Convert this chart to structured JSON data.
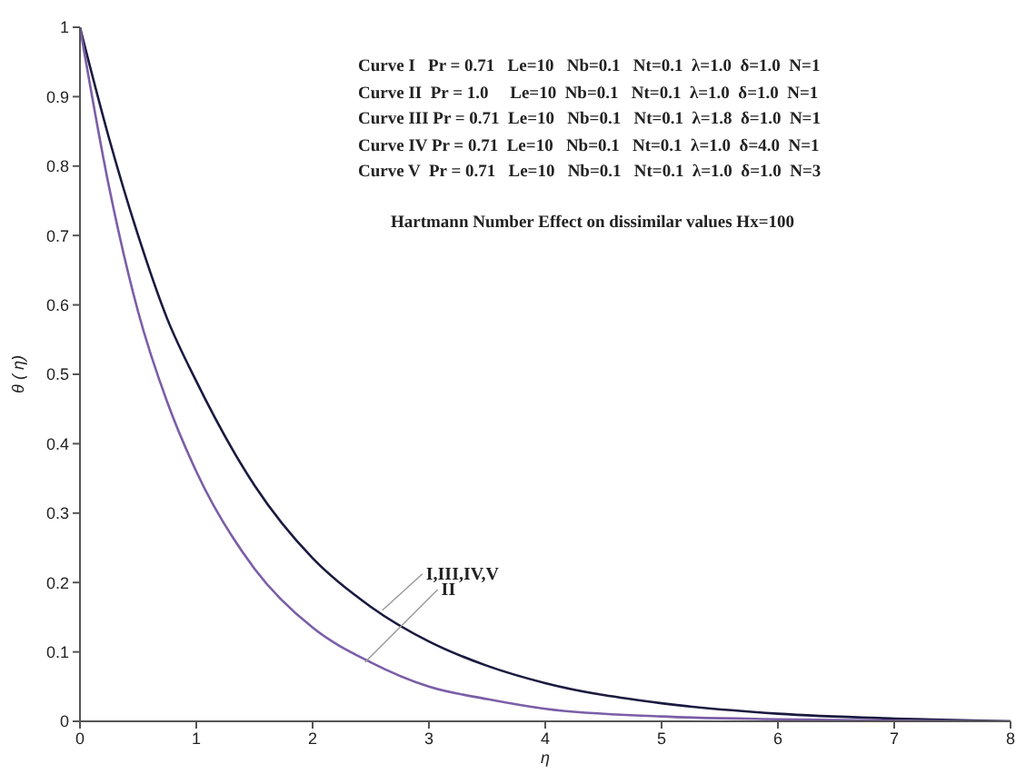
{
  "chart_data": {
    "type": "line",
    "xlabel": "η",
    "ylabel": "θ ( η)",
    "subtitle": "Hartmann Number Effect on dissimilar values Hx=100",
    "annotations": [
      "Curve I   Pr = 0.71   Le=10   Nb=0.1   Nt=0.1  λ=1.0  δ=1.0  N=1",
      "Curve II  Pr = 1.0     Le=10  Nb=0.1   Nt=0.1  λ=1.0  δ=1.0  N=1",
      "Curve III Pr = 0.71  Le=10   Nb=0.1   Nt=0.1  λ=1.8  δ=1.0  N=1",
      "Curve IV Pr = 0.71  Le=10   Nb=0.1   Nt=0.1  λ=1.0  δ=4.0  N=1",
      "Curve V  Pr = 0.71   Le=10   Nb=0.1   Nt=0.1  λ=1.0  δ=1.0  N=3",
      {
        "text": "I,III,IV,V",
        "x": 2.6,
        "y": 0.16
      },
      {
        "text": "II",
        "x": 2.45,
        "y": 0.085
      }
    ],
    "x": [
      0,
      0.25,
      0.5,
      0.75,
      1,
      1.5,
      2,
      2.5,
      3,
      3.5,
      4,
      5,
      6,
      7,
      8
    ],
    "series": [
      {
        "color": "#1a1a40",
        "values": [
          1,
          0.84,
          0.7,
          0.58,
          0.49,
          0.34,
          0.235,
          0.165,
          0.115,
          0.08,
          0.055,
          0.026,
          0.011,
          0.004,
          0
        ]
      },
      {
        "color": "#7b5ea7",
        "values": [
          1,
          0.77,
          0.59,
          0.46,
          0.36,
          0.22,
          0.135,
          0.085,
          0.05,
          0.032,
          0.018,
          0.007,
          0.003,
          0.001,
          0
        ]
      }
    ],
    "xlim": [
      0,
      8
    ],
    "xticks": [
      0,
      1,
      2,
      3,
      4,
      5,
      6,
      7,
      8
    ],
    "ylim": [
      0,
      1
    ],
    "yticks": [
      0,
      0.1,
      0.2,
      0.3,
      0.4,
      0.5,
      0.6,
      0.7,
      0.8,
      0.9,
      1
    ],
    "grid": false,
    "marker": "none",
    "line_style": "solid"
  }
}
